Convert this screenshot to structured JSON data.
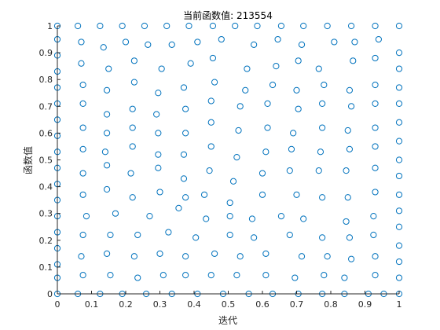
{
  "chart_data": {
    "type": "scatter",
    "title": "当前函数值: 213554",
    "xlabel": "迭代",
    "ylabel": "函数值",
    "xlim": [
      0,
      1
    ],
    "ylim": [
      0,
      1
    ],
    "xticks": [
      "0",
      "0.1",
      "0.2",
      "0.3",
      "0.4",
      "0.5",
      "0.6",
      "0.7",
      "0.8",
      "0.9",
      "1"
    ],
    "yticks": [
      "0",
      "0.1",
      "0.2",
      "0.3",
      "0.4",
      "0.5",
      "0.6",
      "0.7",
      "0.8",
      "0.9",
      "1"
    ],
    "grid": false,
    "marker": "circle-open",
    "marker_color": "#0072BD",
    "axis_color": "#262626",
    "points": [
      [
        0.0,
        1.0
      ],
      [
        0.06,
        1.0
      ],
      [
        0.125,
        1.0
      ],
      [
        0.19,
        1.0
      ],
      [
        0.255,
        1.0
      ],
      [
        0.32,
        1.0
      ],
      [
        0.385,
        1.0
      ],
      [
        0.455,
        1.0
      ],
      [
        0.52,
        1.0
      ],
      [
        0.585,
        1.0
      ],
      [
        0.655,
        1.0
      ],
      [
        0.72,
        1.0
      ],
      [
        0.79,
        1.0
      ],
      [
        0.86,
        1.0
      ],
      [
        0.93,
        1.0
      ],
      [
        1.0,
        1.0
      ],
      [
        0.07,
        0.94
      ],
      [
        0.135,
        0.92
      ],
      [
        0.2,
        0.94
      ],
      [
        0.265,
        0.93
      ],
      [
        0.335,
        0.93
      ],
      [
        0.41,
        0.94
      ],
      [
        0.48,
        0.95
      ],
      [
        0.575,
        0.93
      ],
      [
        0.645,
        0.95
      ],
      [
        0.715,
        0.93
      ],
      [
        0.81,
        0.94
      ],
      [
        0.87,
        0.94
      ],
      [
        0.94,
        0.95
      ],
      [
        0.0,
        0.95
      ],
      [
        0.0,
        0.89
      ],
      [
        1.0,
        0.9
      ],
      [
        0.07,
        0.86
      ],
      [
        0.15,
        0.84
      ],
      [
        0.225,
        0.87
      ],
      [
        0.305,
        0.84
      ],
      [
        0.39,
        0.86
      ],
      [
        0.455,
        0.88
      ],
      [
        0.555,
        0.84
      ],
      [
        0.64,
        0.85
      ],
      [
        0.705,
        0.87
      ],
      [
        0.765,
        0.84
      ],
      [
        0.865,
        0.87
      ],
      [
        0.93,
        0.88
      ],
      [
        0.0,
        0.83
      ],
      [
        1.0,
        0.84
      ],
      [
        0.075,
        0.78
      ],
      [
        0.145,
        0.76
      ],
      [
        0.225,
        0.79
      ],
      [
        0.295,
        0.75
      ],
      [
        0.37,
        0.77
      ],
      [
        0.46,
        0.79
      ],
      [
        0.55,
        0.76
      ],
      [
        0.63,
        0.78
      ],
      [
        0.7,
        0.76
      ],
      [
        0.78,
        0.78
      ],
      [
        0.855,
        0.76
      ],
      [
        0.93,
        0.78
      ],
      [
        0.0,
        0.77
      ],
      [
        1.0,
        0.77
      ],
      [
        0.075,
        0.71
      ],
      [
        0.145,
        0.67
      ],
      [
        0.22,
        0.69
      ],
      [
        0.29,
        0.67
      ],
      [
        0.375,
        0.69
      ],
      [
        0.45,
        0.72
      ],
      [
        0.535,
        0.7
      ],
      [
        0.615,
        0.71
      ],
      [
        0.705,
        0.69
      ],
      [
        0.775,
        0.71
      ],
      [
        0.86,
        0.7
      ],
      [
        0.93,
        0.71
      ],
      [
        0.0,
        0.71
      ],
      [
        1.0,
        0.71
      ],
      [
        0.075,
        0.62
      ],
      [
        0.145,
        0.6
      ],
      [
        0.22,
        0.62
      ],
      [
        0.295,
        0.6
      ],
      [
        0.375,
        0.6
      ],
      [
        0.45,
        0.64
      ],
      [
        0.53,
        0.61
      ],
      [
        0.615,
        0.62
      ],
      [
        0.69,
        0.6
      ],
      [
        0.775,
        0.62
      ],
      [
        0.85,
        0.61
      ],
      [
        0.93,
        0.62
      ],
      [
        0.0,
        0.65
      ],
      [
        1.0,
        0.64
      ],
      [
        0.0,
        0.59
      ],
      [
        1.0,
        0.57
      ],
      [
        0.075,
        0.54
      ],
      [
        0.14,
        0.53
      ],
      [
        0.22,
        0.55
      ],
      [
        0.295,
        0.52
      ],
      [
        0.37,
        0.52
      ],
      [
        0.45,
        0.55
      ],
      [
        0.525,
        0.51
      ],
      [
        0.61,
        0.53
      ],
      [
        0.685,
        0.54
      ],
      [
        0.77,
        0.53
      ],
      [
        0.855,
        0.54
      ],
      [
        0.93,
        0.55
      ],
      [
        0.0,
        0.53
      ],
      [
        1.0,
        0.5
      ],
      [
        0.075,
        0.45
      ],
      [
        0.145,
        0.48
      ],
      [
        0.215,
        0.45
      ],
      [
        0.295,
        0.47
      ],
      [
        0.37,
        0.43
      ],
      [
        0.445,
        0.46
      ],
      [
        0.515,
        0.42
      ],
      [
        0.6,
        0.45
      ],
      [
        0.68,
        0.46
      ],
      [
        0.765,
        0.46
      ],
      [
        0.845,
        0.46
      ],
      [
        0.93,
        0.47
      ],
      [
        0.0,
        0.47
      ],
      [
        1.0,
        0.44
      ],
      [
        0.075,
        0.37
      ],
      [
        0.145,
        0.39
      ],
      [
        0.22,
        0.36
      ],
      [
        0.3,
        0.38
      ],
      [
        0.375,
        0.36
      ],
      [
        0.43,
        0.37
      ],
      [
        0.505,
        0.34
      ],
      [
        0.6,
        0.37
      ],
      [
        0.7,
        0.37
      ],
      [
        0.775,
        0.36
      ],
      [
        0.85,
        0.36
      ],
      [
        0.93,
        0.38
      ],
      [
        0.0,
        0.41
      ],
      [
        1.0,
        0.37
      ],
      [
        0.0,
        0.35
      ],
      [
        1.0,
        0.31
      ],
      [
        0.085,
        0.29
      ],
      [
        0.17,
        0.3
      ],
      [
        0.27,
        0.29
      ],
      [
        0.355,
        0.32
      ],
      [
        0.435,
        0.28
      ],
      [
        0.505,
        0.29
      ],
      [
        0.57,
        0.28
      ],
      [
        0.655,
        0.29
      ],
      [
        0.72,
        0.28
      ],
      [
        0.845,
        0.27
      ],
      [
        0.925,
        0.29
      ],
      [
        0.0,
        0.29
      ],
      [
        1.0,
        0.25
      ],
      [
        0.0,
        0.23
      ],
      [
        0.075,
        0.22
      ],
      [
        0.155,
        0.22
      ],
      [
        0.235,
        0.22
      ],
      [
        0.325,
        0.23
      ],
      [
        0.405,
        0.21
      ],
      [
        0.505,
        0.22
      ],
      [
        0.575,
        0.21
      ],
      [
        0.68,
        0.22
      ],
      [
        0.775,
        0.21
      ],
      [
        0.855,
        0.21
      ],
      [
        0.925,
        0.22
      ],
      [
        0.0,
        0.17
      ],
      [
        1.0,
        0.18
      ],
      [
        0.07,
        0.14
      ],
      [
        0.145,
        0.15
      ],
      [
        0.225,
        0.14
      ],
      [
        0.3,
        0.15
      ],
      [
        0.375,
        0.14
      ],
      [
        0.46,
        0.15
      ],
      [
        0.535,
        0.14
      ],
      [
        0.61,
        0.15
      ],
      [
        0.715,
        0.14
      ],
      [
        0.79,
        0.14
      ],
      [
        0.86,
        0.13
      ],
      [
        0.93,
        0.14
      ],
      [
        0.0,
        0.11
      ],
      [
        1.0,
        0.12
      ],
      [
        0.075,
        0.07
      ],
      [
        0.155,
        0.07
      ],
      [
        0.235,
        0.06
      ],
      [
        0.31,
        0.07
      ],
      [
        0.375,
        0.07
      ],
      [
        0.45,
        0.07
      ],
      [
        0.525,
        0.07
      ],
      [
        0.61,
        0.07
      ],
      [
        0.695,
        0.06
      ],
      [
        0.78,
        0.07
      ],
      [
        0.84,
        0.06
      ],
      [
        0.93,
        0.07
      ],
      [
        0.0,
        0.06
      ],
      [
        1.0,
        0.06
      ],
      [
        0.0,
        0.0
      ],
      [
        0.06,
        0.0
      ],
      [
        0.125,
        0.0
      ],
      [
        0.19,
        0.0
      ],
      [
        0.26,
        0.0
      ],
      [
        0.335,
        0.0
      ],
      [
        0.41,
        0.0
      ],
      [
        0.485,
        0.0
      ],
      [
        0.56,
        0.0
      ],
      [
        0.63,
        0.0
      ],
      [
        0.705,
        0.0
      ],
      [
        0.775,
        0.0
      ],
      [
        0.84,
        0.0
      ],
      [
        0.91,
        0.0
      ],
      [
        0.955,
        0.0
      ],
      [
        1.0,
        0.0
      ]
    ]
  }
}
